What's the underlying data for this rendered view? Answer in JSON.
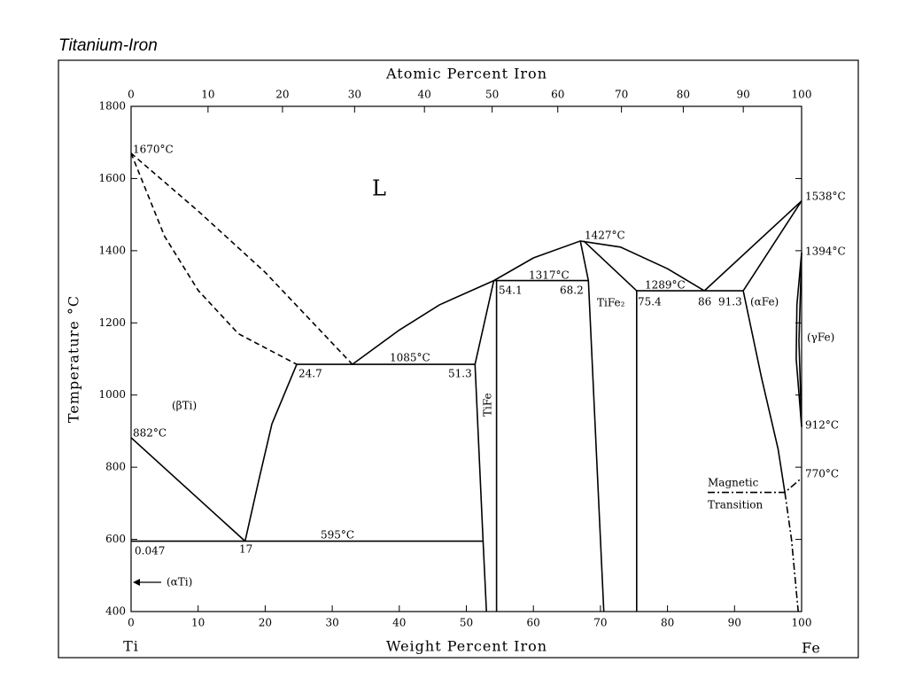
{
  "chart_data": {
    "type": "line",
    "title": "Titanium-Iron",
    "xlabel": "Weight Percent Iron",
    "ylabel": "Temperature °C",
    "x2label": "Atomic Percent Iron",
    "left_end_label": "Ti",
    "right_end_label": "Fe",
    "xlim": [
      0,
      100
    ],
    "ylim": [
      400,
      1800
    ],
    "xticks": [
      0,
      10,
      20,
      30,
      40,
      50,
      60,
      70,
      80,
      90,
      100
    ],
    "yticks": [
      400,
      600,
      800,
      1000,
      1200,
      1400,
      1600,
      1800
    ],
    "x2ticks": [
      0,
      10,
      20,
      30,
      40,
      50,
      60,
      70,
      80,
      90,
      100
    ],
    "color": "#000000",
    "series": [
      {
        "style": "dashed",
        "x": [
          0,
          10,
          20,
          33
        ],
        "values": [
          1670,
          1510,
          1340,
          1085
        ]
      },
      {
        "style": "dashed",
        "x": [
          0,
          5,
          10,
          16,
          24.7
        ],
        "values": [
          1670,
          1440,
          1290,
          1170,
          1085
        ]
      },
      {
        "style": "solid",
        "x": [
          33,
          40,
          46,
          54.1,
          60,
          67,
          73,
          80,
          85.5
        ],
        "values": [
          1085,
          1180,
          1250,
          1317,
          1380,
          1427,
          1410,
          1350,
          1289
        ]
      },
      {
        "style": "solid",
        "x": [
          24.7,
          51.3
        ],
        "values": [
          1085,
          1085
        ]
      },
      {
        "style": "solid",
        "x": [
          0,
          17
        ],
        "values": [
          882,
          595
        ]
      },
      {
        "style": "solid",
        "x": [
          0,
          52.5
        ],
        "values": [
          595,
          595
        ]
      },
      {
        "style": "solid",
        "x": [
          17,
          19,
          21,
          24.7
        ],
        "values": [
          595,
          760,
          920,
          1085
        ]
      },
      {
        "style": "solid",
        "x": [
          54.1,
          51.3,
          52.5,
          53
        ],
        "values": [
          1317,
          1085,
          595,
          400
        ]
      },
      {
        "style": "solid",
        "x": [
          54.5,
          54.5
        ],
        "values": [
          1317,
          400
        ]
      },
      {
        "style": "solid",
        "x": [
          54.1,
          68.2
        ],
        "values": [
          1317,
          1317
        ]
      },
      {
        "style": "solid",
        "x": [
          67,
          68.2,
          69.5,
          70.5
        ],
        "values": [
          1427,
          1317,
          800,
          400
        ]
      },
      {
        "style": "solid",
        "x": [
          67.5,
          75.4,
          75.4
        ],
        "values": [
          1427,
          1289,
          400
        ]
      },
      {
        "style": "solid",
        "x": [
          75.4,
          91.3
        ],
        "values": [
          1289,
          1289
        ]
      },
      {
        "style": "solid",
        "x": [
          85.5,
          100
        ],
        "values": [
          1289,
          1538
        ]
      },
      {
        "style": "solid",
        "x": [
          91.3,
          100
        ],
        "values": [
          1289,
          1538
        ]
      },
      {
        "style": "solid",
        "x": [
          91.3,
          94,
          96.5,
          97.5
        ],
        "values": [
          1289,
          1050,
          850,
          730
        ]
      },
      {
        "style": "dashdot",
        "x": [
          97.5,
          98.5,
          99.5
        ],
        "values": [
          730,
          600,
          400
        ]
      },
      {
        "style": "dashdot",
        "x": [
          86,
          97.5,
          100
        ],
        "values": [
          730,
          730,
          770
        ]
      },
      {
        "style": "solid",
        "x": [
          100,
          99.3,
          99.2,
          100
        ],
        "values": [
          1394,
          1250,
          1100,
          912
        ]
      },
      {
        "style": "solid",
        "x": [
          100,
          99.6,
          100
        ],
        "values": [
          1394,
          1150,
          912
        ]
      }
    ],
    "annotations": [
      "1670°C",
      "1538°C",
      "1394°C",
      "912°C",
      "770°C",
      "882°C",
      "1427°C",
      "1317°C",
      "1289°C",
      "1085°C",
      "595°C",
      "L",
      "(βTi)",
      "(αTi)",
      "(αFe)",
      "(γFe)",
      "TiFe",
      "TiFe₂",
      "Magnetic",
      "Transition",
      "24.7",
      "51.3",
      "54.1",
      "68.2",
      "75.4",
      "86",
      "91.3",
      "0.047",
      "17"
    ]
  }
}
